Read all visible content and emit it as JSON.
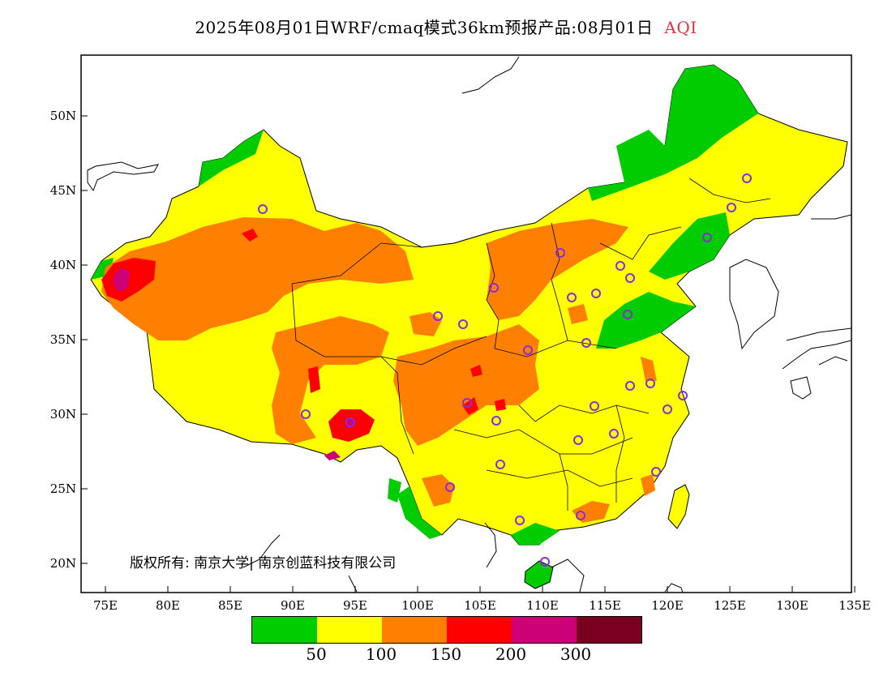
{
  "title": {
    "text": "2025年08月01日WRF/cmaq模式36km预报产品:08月01日",
    "variable": "AQI"
  },
  "copyright": "版权所有: 南京大学| 南京创蓝科技有限公司",
  "axes": {
    "x_ticks": [
      "75E",
      "80E",
      "85E",
      "90E",
      "95E",
      "100E",
      "105E",
      "110E",
      "115E",
      "120E",
      "125E",
      "130E",
      "135E"
    ],
    "y_ticks": [
      "20N",
      "25N",
      "30N",
      "35N",
      "40N",
      "45N",
      "50N"
    ]
  },
  "legend": {
    "colors": [
      "#00cc00",
      "#ffff00",
      "#ff8000",
      "#ff0000",
      "#cc0077",
      "#7a0020"
    ],
    "labels": [
      "50",
      "100",
      "150",
      "200",
      "300"
    ]
  },
  "colors": {
    "good": "#00cc00",
    "moderate": "#ffff00",
    "unhealthy_sensitive": "#ff8000",
    "unhealthy": "#ff0000",
    "very_unhealthy": "#cc0077",
    "station_marker": "#8a2be2"
  }
}
